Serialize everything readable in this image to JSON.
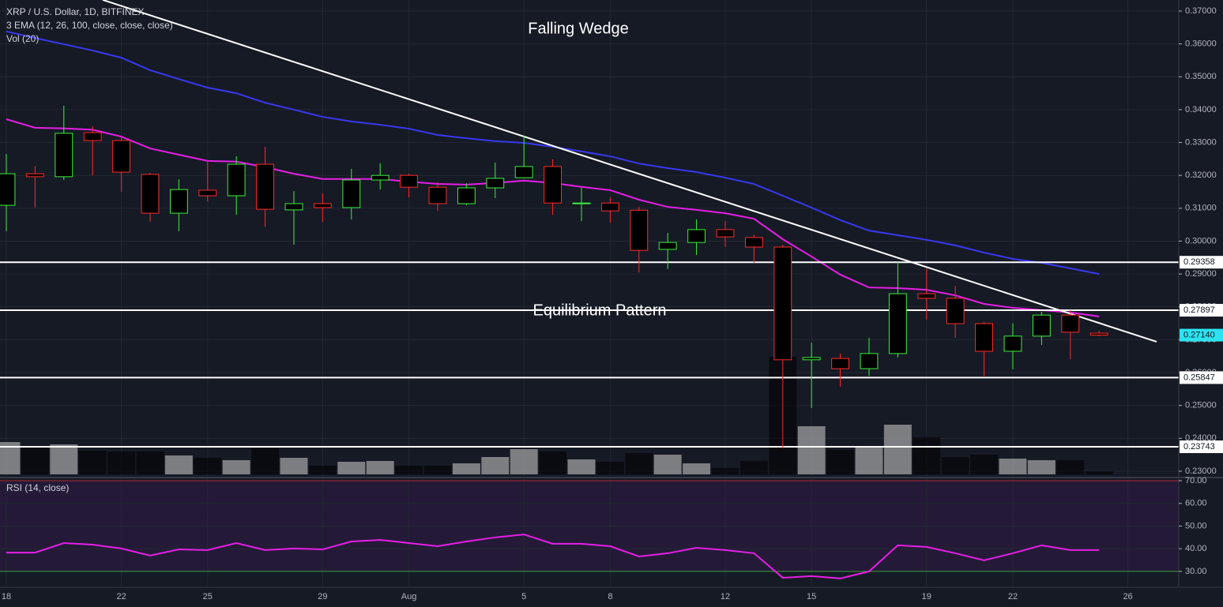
{
  "chart_data": {
    "type": "candlestick",
    "title": "XRP / U.S. Dollar, 1D, BITFINEX",
    "indicators": [
      "3 EMA (12, 26, 100, close, close, close)",
      "Vol (20)"
    ],
    "x": [
      0,
      1,
      2,
      3,
      4,
      5,
      6,
      7,
      8,
      9,
      10,
      11,
      12,
      13,
      14,
      15,
      16,
      17,
      18,
      19,
      20,
      21,
      22,
      23,
      24,
      25,
      26,
      27,
      28,
      29,
      30,
      31,
      32,
      33,
      34,
      35,
      36,
      37,
      38
    ],
    "open": [
      0.3109,
      0.3205,
      0.3196,
      0.333,
      0.3306,
      0.3203,
      0.3085,
      0.3155,
      0.3138,
      0.3234,
      0.3095,
      0.3114,
      0.3102,
      0.3186,
      0.32,
      0.3164,
      0.3114,
      0.3162,
      0.3193,
      0.3227,
      0.3114,
      0.3116,
      0.3094,
      0.2975,
      0.2996,
      0.3035,
      0.3011,
      0.2982,
      0.2639,
      0.2643,
      0.2612,
      0.2658,
      0.284,
      0.2826,
      0.2749,
      0.2665,
      0.2711,
      0.2775,
      0.272
    ],
    "high": [
      0.3265,
      0.3229,
      0.3412,
      0.335,
      0.332,
      0.3207,
      0.3188,
      0.3241,
      0.3258,
      0.3287,
      0.3152,
      0.3145,
      0.322,
      0.3237,
      0.3205,
      0.3179,
      0.3176,
      0.3239,
      0.332,
      0.3249,
      0.3162,
      0.3133,
      0.3104,
      0.3025,
      0.3066,
      0.3061,
      0.302,
      0.2989,
      0.2691,
      0.2658,
      0.2706,
      0.2936,
      0.2917,
      0.2864,
      0.2754,
      0.275,
      0.2785,
      0.279,
      0.2727
    ],
    "low": [
      0.303,
      0.3102,
      0.3186,
      0.32,
      0.315,
      0.3059,
      0.303,
      0.3121,
      0.308,
      0.3044,
      0.2989,
      0.3059,
      0.3066,
      0.3157,
      0.3133,
      0.3092,
      0.3109,
      0.3131,
      0.3193,
      0.308,
      0.3061,
      0.3056,
      0.2905,
      0.2915,
      0.2958,
      0.2982,
      0.2934,
      0.237,
      0.2492,
      0.2557,
      0.259,
      0.2646,
      0.2761,
      0.2706,
      0.2586,
      0.261,
      0.2684,
      0.2641,
      0.2711
    ],
    "close": [
      0.3205,
      0.3196,
      0.3328,
      0.3306,
      0.321,
      0.3085,
      0.3157,
      0.3138,
      0.3234,
      0.3097,
      0.3114,
      0.3102,
      0.3186,
      0.32,
      0.3164,
      0.3114,
      0.3162,
      0.3191,
      0.3227,
      0.3116,
      0.3116,
      0.3092,
      0.2972,
      0.2996,
      0.3035,
      0.3013,
      0.2982,
      0.2639,
      0.2646,
      0.2612,
      0.2658,
      0.284,
      0.2826,
      0.2749,
      0.2665,
      0.2711,
      0.2775,
      0.2723,
      0.2714
    ],
    "up_color": "#3cf03c",
    "down_color": "#ff2a2a",
    "series": [
      {
        "color": "#e61ee6",
        "values": [
          0.3371,
          0.3345,
          0.3343,
          0.3339,
          0.3318,
          0.3282,
          0.3263,
          0.3244,
          0.3242,
          0.3225,
          0.3205,
          0.3189,
          0.3189,
          0.3189,
          0.3181,
          0.3174,
          0.3172,
          0.3177,
          0.3184,
          0.3177,
          0.3165,
          0.3155,
          0.3126,
          0.3104,
          0.3095,
          0.3085,
          0.3068,
          0.3006,
          0.2953,
          0.2898,
          0.2859,
          0.2857,
          0.2852,
          0.2835,
          0.2809,
          0.2797,
          0.279,
          0.2783,
          0.2771
        ]
      },
      {
        "color": "#3838f0",
        "values": [
          0.3638,
          0.3618,
          0.3599,
          0.358,
          0.3558,
          0.352,
          0.3493,
          0.3467,
          0.345,
          0.3421,
          0.34,
          0.3378,
          0.3364,
          0.3354,
          0.3342,
          0.3323,
          0.3313,
          0.3304,
          0.3299,
          0.3287,
          0.3273,
          0.3258,
          0.3236,
          0.3222,
          0.321,
          0.3193,
          0.3174,
          0.3138,
          0.3102,
          0.3064,
          0.3032,
          0.3018,
          0.3004,
          0.2987,
          0.2965,
          0.2946,
          0.2934,
          0.2917,
          0.29
        ]
      }
    ],
    "volume": {
      "values": [
        41,
        34,
        38,
        30,
        29,
        29,
        24,
        21,
        18,
        33,
        21,
        11,
        16,
        17,
        11,
        11,
        14,
        22,
        32,
        29,
        19,
        16,
        27,
        25,
        14,
        8,
        17,
        149,
        61,
        31,
        35,
        63,
        47,
        22,
        25,
        20,
        18,
        18,
        4
      ],
      "up_color": "#a0a0a0",
      "down_color": "#000000"
    },
    "xlim": [
      -0.22,
      40.77
    ],
    "xticks": [
      {
        "value": 0,
        "label": "18"
      },
      {
        "value": 4,
        "label": "22"
      },
      {
        "value": 7,
        "label": "25"
      },
      {
        "value": 11,
        "label": "29"
      },
      {
        "value": 14,
        "label": "Aug"
      },
      {
        "value": 18,
        "label": "5"
      },
      {
        "value": 21,
        "label": "8"
      },
      {
        "value": 25,
        "label": "12"
      },
      {
        "value": 28,
        "label": "15"
      },
      {
        "value": 32,
        "label": "19"
      },
      {
        "value": 35,
        "label": "22"
      },
      {
        "value": 39,
        "label": "26"
      }
    ],
    "ylim": [
      0.22855,
      0.37336
    ],
    "yticks": [
      {
        "value": 0.23,
        "label": "0.23000"
      },
      {
        "value": 0.24,
        "label": "0.24000"
      },
      {
        "value": 0.25,
        "label": "0.25000"
      },
      {
        "value": 0.26,
        "label": "0.26000"
      },
      {
        "value": 0.27,
        "label": "0.27000"
      },
      {
        "value": 0.28,
        "label": "0.28000"
      },
      {
        "value": 0.29,
        "label": "0.29000"
      },
      {
        "value": 0.3,
        "label": "0.30000"
      },
      {
        "value": 0.31,
        "label": "0.31000"
      },
      {
        "value": 0.32,
        "label": "0.32000"
      },
      {
        "value": 0.33,
        "label": "0.33000"
      },
      {
        "value": 0.34,
        "label": "0.34000"
      },
      {
        "value": 0.35,
        "label": "0.35000"
      },
      {
        "value": 0.36,
        "label": "0.36000"
      },
      {
        "value": 0.37,
        "label": "0.37000"
      }
    ],
    "grid": true,
    "levels": [
      0.29358,
      0.27897,
      0.25847,
      0.23743
    ],
    "level_color": "#ffffff",
    "last_price": {
      "value": 0.2714,
      "label": "0.27140"
    },
    "last_price_color": "#2de3f0",
    "trendline": {
      "x": [
        3.35,
        40.0
      ],
      "y": [
        0.3734,
        0.2694
      ],
      "color": "#ffffff"
    },
    "annotations": [
      "Falling Wedge",
      "Equilibrium Pattern"
    ],
    "rsi": {
      "title": "RSI (14, close)",
      "color": "#e61ee6",
      "values": [
        38.3,
        38.3,
        42.5,
        41.8,
        40.1,
        37.0,
        39.7,
        39.4,
        42.5,
        39.4,
        40.1,
        39.7,
        43.2,
        43.9,
        42.5,
        41.1,
        43.2,
        45.0,
        46.3,
        42.2,
        42.2,
        41.1,
        36.6,
        38.0,
        40.4,
        39.4,
        38.0,
        27.2,
        27.9,
        26.9,
        30.0,
        41.5,
        40.8,
        38.0,
        34.9,
        38.0,
        41.5,
        39.4,
        39.4
      ],
      "ylim": [
        23.7,
        70.7
      ],
      "yticks": [
        {
          "value": 30,
          "label": "30.00"
        },
        {
          "value": 40,
          "label": "40.00"
        },
        {
          "value": 50,
          "label": "50.00"
        },
        {
          "value": 60,
          "label": "60.00"
        },
        {
          "value": 70,
          "label": "70.00"
        }
      ],
      "bands": [
        30,
        70
      ],
      "band_colors": [
        "#3ca03c",
        "#b02835"
      ],
      "band_fill": "#241a38"
    }
  }
}
